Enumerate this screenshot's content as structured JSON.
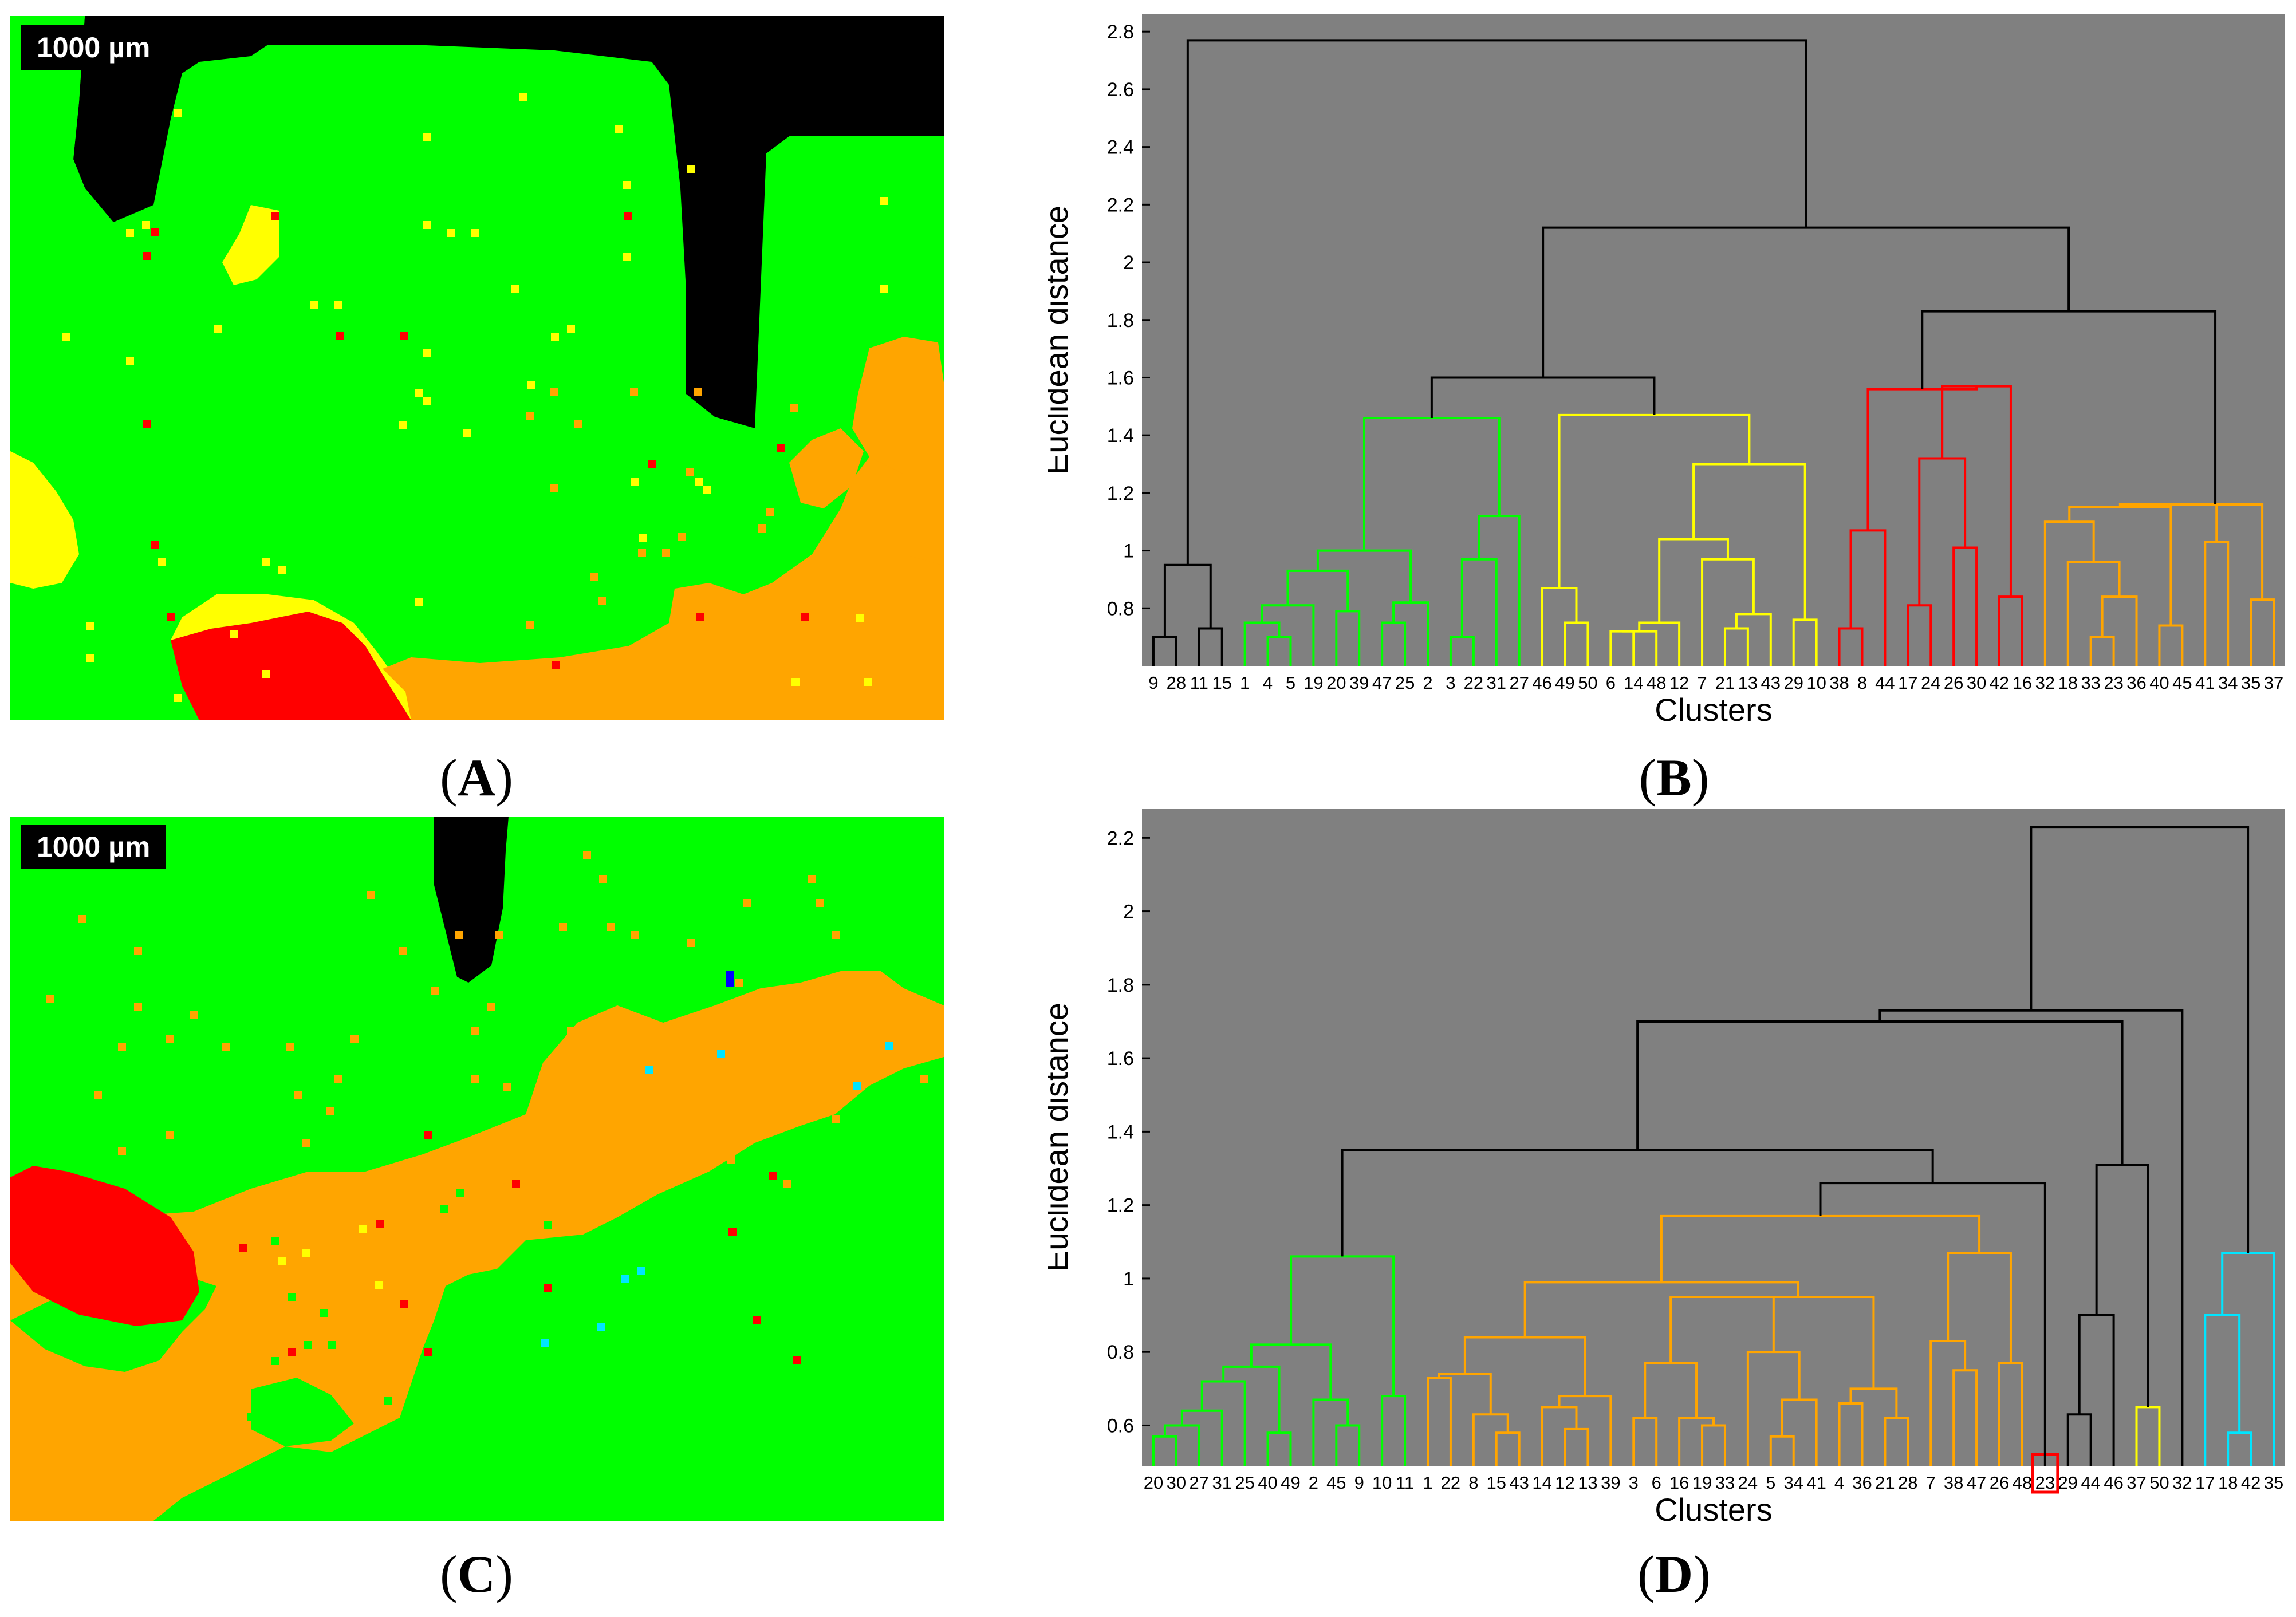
{
  "panels": [
    {
      "letter": "A",
      "scale_label": "1000 µm"
    },
    {
      "letter": "B"
    },
    {
      "letter": "C",
      "scale_label": "1000 µm"
    },
    {
      "letter": "D"
    }
  ],
  "colors": {
    "green": "#00ff00",
    "yellow": "#ffff00",
    "red": "#ff0000",
    "orange": "#ffa500",
    "black": "#000000",
    "cyan": "#00e5ff",
    "blue": "#0000ff",
    "plot_bg": "#808080"
  },
  "chart_data": [
    {
      "type": "heatmap",
      "panel": "A",
      "description_label": "1000 µm",
      "categories": [
        "green",
        "yellow",
        "red",
        "orange",
        "black"
      ]
    },
    {
      "type": "dendrogram",
      "panel": "B",
      "xlabel": "Clusters",
      "ylabel": "Euclidean distance",
      "ylim": [
        0.6,
        2.86
      ],
      "yticks": [
        0.8,
        1,
        1.2,
        1.4,
        1.6,
        1.8,
        2,
        2.2,
        2.4,
        2.6,
        2.8
      ],
      "ytick_labels": [
        "0.8",
        "1",
        "1.2",
        "1.4",
        "1.6",
        "1.8",
        "2",
        "2.2",
        "2.4",
        "2.6",
        "2.8"
      ],
      "leaves": [
        "9",
        "28",
        "11",
        "15",
        "1",
        "4",
        "5",
        "19",
        "20",
        "39",
        "47",
        "25",
        "2",
        "3",
        "22",
        "31",
        "27",
        "46",
        "49",
        "50",
        "6",
        "14",
        "48",
        "12",
        "7",
        "21",
        "13",
        "43",
        "29",
        "10",
        "38",
        "8",
        "44",
        "17",
        "24",
        "26",
        "30",
        "42",
        "16",
        "32",
        "18",
        "33",
        "23",
        "36",
        "40",
        "45",
        "41",
        "34",
        "35",
        "37"
      ],
      "merges": [
        {
          "l": 0,
          "r": 1,
          "h": 0.7,
          "c": "black"
        },
        {
          "l": 2,
          "r": 3,
          "h": 0.73,
          "c": "black"
        },
        {
          "l": 50,
          "r": 51,
          "h": 0.95,
          "c": "black"
        },
        {
          "l": 5,
          "r": 6,
          "h": 0.7,
          "c": "green"
        },
        {
          "l": 4,
          "r": 53,
          "h": 0.75,
          "c": "green"
        },
        {
          "l": 54,
          "r": 7,
          "h": 0.81,
          "c": "green"
        },
        {
          "l": 8,
          "r": 9,
          "h": 0.79,
          "c": "green"
        },
        {
          "l": 55,
          "r": 56,
          "h": 0.93,
          "c": "green"
        },
        {
          "l": 10,
          "r": 11,
          "h": 0.75,
          "c": "green"
        },
        {
          "l": 58,
          "r": 12,
          "h": 0.82,
          "c": "green"
        },
        {
          "l": 57,
          "r": 59,
          "h": 1.0,
          "c": "green"
        },
        {
          "l": 13,
          "r": 14,
          "h": 0.7,
          "c": "green"
        },
        {
          "l": 61,
          "r": 15,
          "h": 0.97,
          "c": "green"
        },
        {
          "l": 62,
          "r": 16,
          "h": 1.12,
          "c": "green"
        },
        {
          "l": 60,
          "r": 63,
          "h": 1.46,
          "c": "green"
        },
        {
          "l": 18,
          "r": 19,
          "h": 0.75,
          "c": "yellow"
        },
        {
          "l": 17,
          "r": 65,
          "h": 0.87,
          "c": "yellow"
        },
        {
          "l": 20,
          "r": 21,
          "h": 0.72,
          "c": "yellow"
        },
        {
          "l": 67,
          "r": 22,
          "h": 0.72,
          "c": "yellow"
        },
        {
          "l": 68,
          "r": 23,
          "h": 0.75,
          "c": "yellow"
        },
        {
          "l": 25,
          "r": 26,
          "h": 0.73,
          "c": "yellow"
        },
        {
          "l": 70,
          "r": 27,
          "h": 0.78,
          "c": "yellow"
        },
        {
          "l": 24,
          "r": 71,
          "h": 0.97,
          "c": "yellow"
        },
        {
          "l": 69,
          "r": 72,
          "h": 1.04,
          "c": "yellow"
        },
        {
          "l": 28,
          "r": 29,
          "h": 0.76,
          "c": "yellow"
        },
        {
          "l": 73,
          "r": 74,
          "h": 1.3,
          "c": "yellow"
        },
        {
          "l": 66,
          "r": 75,
          "h": 1.47,
          "c": "yellow"
        },
        {
          "l": 64,
          "r": 76,
          "h": 1.6,
          "c": "black"
        },
        {
          "l": 30,
          "r": 31,
          "h": 0.73,
          "c": "red"
        },
        {
          "l": 78,
          "r": 32,
          "h": 1.07,
          "c": "red"
        },
        {
          "l": 33,
          "r": 34,
          "h": 0.81,
          "c": "red"
        },
        {
          "l": 35,
          "r": 36,
          "h": 1.01,
          "c": "red"
        },
        {
          "l": 80,
          "r": 81,
          "h": 1.32,
          "c": "red"
        },
        {
          "l": 37,
          "r": 38,
          "h": 0.84,
          "c": "red"
        },
        {
          "l": 82,
          "r": 83,
          "h": 1.57,
          "c": "red"
        },
        {
          "l": 79,
          "r": 84,
          "h": 1.56,
          "c": "red"
        },
        {
          "l": 41,
          "r": 42,
          "h": 0.7,
          "c": "orange"
        },
        {
          "l": 86,
          "r": 43,
          "h": 0.84,
          "c": "orange"
        },
        {
          "l": 40,
          "r": 87,
          "h": 0.96,
          "c": "orange"
        },
        {
          "l": 39,
          "r": 88,
          "h": 1.1,
          "c": "orange"
        },
        {
          "l": 44,
          "r": 45,
          "h": 0.74,
          "c": "orange"
        },
        {
          "l": 89,
          "r": 90,
          "h": 1.15,
          "c": "orange"
        },
        {
          "l": 46,
          "r": 47,
          "h": 1.03,
          "c": "orange"
        },
        {
          "l": 91,
          "r": 92,
          "h": 1.16,
          "c": "orange"
        },
        {
          "l": 48,
          "r": 49,
          "h": 0.83,
          "c": "orange"
        },
        {
          "l": 93,
          "r": 94,
          "h": 1.16,
          "c": "orange"
        },
        {
          "l": 85,
          "r": 95,
          "h": 1.83,
          "c": "black"
        },
        {
          "l": 77,
          "r": 96,
          "h": 2.12,
          "c": "black"
        },
        {
          "l": 52,
          "r": 97,
          "h": 2.77,
          "c": "black"
        }
      ]
    },
    {
      "type": "heatmap",
      "panel": "C",
      "description_label": "1000 µm",
      "categories": [
        "green",
        "orange",
        "red",
        "black",
        "cyan",
        "blue",
        "yellow"
      ]
    },
    {
      "type": "dendrogram",
      "panel": "D",
      "xlabel": "Clusters",
      "ylabel": "Euclidean distance",
      "ylim": [
        0.49,
        2.28
      ],
      "yticks": [
        0.6,
        0.8,
        1,
        1.2,
        1.4,
        1.6,
        1.8,
        2,
        2.2
      ],
      "ytick_labels": [
        "0.6",
        "0.8",
        "1",
        "1.2",
        "1.4",
        "1.6",
        "1.8",
        "2",
        "2.2"
      ],
      "highlight_leaf": "23",
      "leaves": [
        "20",
        "30",
        "27",
        "31",
        "25",
        "40",
        "49",
        "2",
        "45",
        "9",
        "10",
        "11",
        "1",
        "22",
        "8",
        "15",
        "43",
        "14",
        "12",
        "13",
        "39",
        "3",
        "6",
        "16",
        "19",
        "33",
        "24",
        "5",
        "34",
        "41",
        "4",
        "36",
        "21",
        "28",
        "7",
        "38",
        "47",
        "26",
        "48",
        "23",
        "29",
        "44",
        "46",
        "37",
        "50",
        "32",
        "17",
        "18",
        "42",
        "35"
      ],
      "merges": [
        {
          "l": 0,
          "r": 1,
          "h": 0.57,
          "c": "green"
        },
        {
          "l": 50,
          "r": 2,
          "h": 0.6,
          "c": "green"
        },
        {
          "l": 51,
          "r": 3,
          "h": 0.64,
          "c": "green"
        },
        {
          "l": 52,
          "r": 4,
          "h": 0.72,
          "c": "green"
        },
        {
          "l": 5,
          "r": 6,
          "h": 0.58,
          "c": "green"
        },
        {
          "l": 53,
          "r": 54,
          "h": 0.76,
          "c": "green"
        },
        {
          "l": 8,
          "r": 9,
          "h": 0.6,
          "c": "green"
        },
        {
          "l": 7,
          "r": 56,
          "h": 0.67,
          "c": "green"
        },
        {
          "l": 55,
          "r": 57,
          "h": 0.82,
          "c": "green"
        },
        {
          "l": 10,
          "r": 11,
          "h": 0.68,
          "c": "green"
        },
        {
          "l": 58,
          "r": 59,
          "h": 1.06,
          "c": "green"
        },
        {
          "l": 12,
          "r": 13,
          "h": 0.73,
          "c": "orange"
        },
        {
          "l": 15,
          "r": 16,
          "h": 0.58,
          "c": "orange"
        },
        {
          "l": 14,
          "r": 62,
          "h": 0.63,
          "c": "orange"
        },
        {
          "l": 61,
          "r": 63,
          "h": 0.74,
          "c": "orange"
        },
        {
          "l": 18,
          "r": 19,
          "h": 0.59,
          "c": "orange"
        },
        {
          "l": 17,
          "r": 65,
          "h": 0.65,
          "c": "orange"
        },
        {
          "l": 66,
          "r": 20,
          "h": 0.68,
          "c": "orange"
        },
        {
          "l": 64,
          "r": 67,
          "h": 0.84,
          "c": "orange"
        },
        {
          "l": 21,
          "r": 22,
          "h": 0.62,
          "c": "orange"
        },
        {
          "l": 24,
          "r": 25,
          "h": 0.6,
          "c": "orange"
        },
        {
          "l": 23,
          "r": 70,
          "h": 0.62,
          "c": "orange"
        },
        {
          "l": 69,
          "r": 71,
          "h": 0.77,
          "c": "orange"
        },
        {
          "l": 27,
          "r": 28,
          "h": 0.57,
          "c": "orange"
        },
        {
          "l": 73,
          "r": 29,
          "h": 0.67,
          "c": "orange"
        },
        {
          "l": 26,
          "r": 74,
          "h": 0.8,
          "c": "orange"
        },
        {
          "l": 72,
          "r": 75,
          "h": 0.95,
          "c": "orange"
        },
        {
          "l": 30,
          "r": 31,
          "h": 0.66,
          "c": "orange"
        },
        {
          "l": 32,
          "r": 33,
          "h": 0.62,
          "c": "orange"
        },
        {
          "l": 77,
          "r": 78,
          "h": 0.7,
          "c": "orange"
        },
        {
          "l": 76,
          "r": 79,
          "h": 0.95,
          "c": "orange"
        },
        {
          "l": 68,
          "r": 80,
          "h": 0.99,
          "c": "orange"
        },
        {
          "l": 35,
          "r": 36,
          "h": 0.75,
          "c": "orange"
        },
        {
          "l": 34,
          "r": 82,
          "h": 0.83,
          "c": "orange"
        },
        {
          "l": 37,
          "r": 38,
          "h": 0.77,
          "c": "orange"
        },
        {
          "l": 83,
          "r": 84,
          "h": 1.07,
          "c": "orange"
        },
        {
          "l": 81,
          "r": 85,
          "h": 1.17,
          "c": "orange"
        },
        {
          "l": 86,
          "r": 39,
          "h": 1.26,
          "c": "black"
        },
        {
          "l": 60,
          "r": 87,
          "h": 1.35,
          "c": "black"
        },
        {
          "l": 40,
          "r": 41,
          "h": 0.63,
          "c": "black"
        },
        {
          "l": 89,
          "r": 42,
          "h": 0.9,
          "c": "black"
        },
        {
          "l": 43,
          "r": 44,
          "h": 0.65,
          "c": "yellow"
        },
        {
          "l": 90,
          "r": 91,
          "h": 1.31,
          "c": "black"
        },
        {
          "l": 88,
          "r": 92,
          "h": 1.7,
          "c": "black"
        },
        {
          "l": 93,
          "r": 45,
          "h": 1.73,
          "c": "black"
        },
        {
          "l": 47,
          "r": 48,
          "h": 0.58,
          "c": "cyan"
        },
        {
          "l": 46,
          "r": 95,
          "h": 0.9,
          "c": "cyan"
        },
        {
          "l": 96,
          "r": 49,
          "h": 1.07,
          "c": "cyan"
        },
        {
          "l": 94,
          "r": 97,
          "h": 2.23,
          "c": "black"
        }
      ]
    }
  ]
}
